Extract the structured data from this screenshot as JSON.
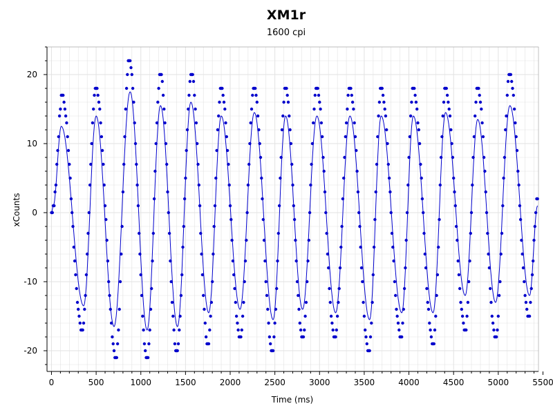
{
  "chart_data": {
    "type": "scatter",
    "title": "XM1r",
    "subtitle": "1600 cpi",
    "xlabel": "Time (ms)",
    "ylabel": "xCounts",
    "xlim": [
      -50,
      5450
    ],
    "ylim": [
      -23,
      24
    ],
    "x_ticks": [
      0,
      500,
      1000,
      1500,
      2000,
      2500,
      3000,
      3500,
      4000,
      4500,
      5000,
      5500
    ],
    "y_ticks": [
      -20,
      -10,
      0,
      10,
      20
    ],
    "x_tick_labels": [
      "0",
      "500",
      "1000",
      "1500",
      "2000",
      "2500",
      "3000",
      "3500",
      "4000",
      "4500",
      "5000",
      "5500"
    ],
    "y_tick_labels": [
      "-20",
      "-10",
      "0",
      "10",
      "20"
    ],
    "grid": true,
    "legend": "none",
    "colors": {
      "points": "#0000cc",
      "line": "#0000cc",
      "grid": "#e2e2e2",
      "axis": "#000000"
    },
    "series": [
      {
        "kind": "smoothed-line",
        "peaks": [
          [
            0,
            0
          ],
          [
            20,
            1
          ],
          [
            110,
            12.5
          ],
          [
            360,
            -13.5
          ],
          [
            500,
            14
          ],
          [
            700,
            -16.5
          ],
          [
            880,
            17.5
          ],
          [
            1070,
            -17
          ],
          [
            1220,
            15.5
          ],
          [
            1410,
            -16.5
          ],
          [
            1560,
            16
          ],
          [
            1760,
            -14.5
          ],
          [
            1900,
            14
          ],
          [
            2110,
            -14
          ],
          [
            2270,
            14.5
          ],
          [
            2480,
            -15.5
          ],
          [
            2620,
            14
          ],
          [
            2810,
            -14
          ],
          [
            2970,
            14
          ],
          [
            3180,
            -14.5
          ],
          [
            3340,
            14
          ],
          [
            3560,
            -15.5
          ],
          [
            3690,
            14
          ],
          [
            3920,
            -14.5
          ],
          [
            4050,
            14
          ],
          [
            4270,
            -14.5
          ],
          [
            4410,
            14.5
          ],
          [
            4630,
            -12
          ],
          [
            4770,
            13.5
          ],
          [
            4970,
            -13
          ],
          [
            5130,
            15.5
          ],
          [
            5350,
            -12
          ],
          [
            5440,
            1
          ]
        ]
      },
      {
        "kind": "points",
        "peaks": [
          [
            0,
            0
          ],
          [
            20,
            1
          ],
          [
            120,
            17
          ],
          [
            340,
            -17
          ],
          [
            500,
            18
          ],
          [
            720,
            -21
          ],
          [
            870,
            22
          ],
          [
            1070,
            -21
          ],
          [
            1220,
            20
          ],
          [
            1400,
            -20
          ],
          [
            1570,
            20
          ],
          [
            1750,
            -19
          ],
          [
            1900,
            18
          ],
          [
            2110,
            -18
          ],
          [
            2270,
            18
          ],
          [
            2470,
            -20
          ],
          [
            2620,
            18
          ],
          [
            2810,
            -18
          ],
          [
            2970,
            18
          ],
          [
            3170,
            -18
          ],
          [
            3340,
            18
          ],
          [
            3550,
            -20
          ],
          [
            3690,
            18
          ],
          [
            3910,
            -18
          ],
          [
            4050,
            18
          ],
          [
            4270,
            -19
          ],
          [
            4410,
            18
          ],
          [
            4630,
            -17
          ],
          [
            4770,
            18
          ],
          [
            4970,
            -18
          ],
          [
            5130,
            20
          ],
          [
            5340,
            -15
          ],
          [
            5440,
            2
          ]
        ],
        "step_ms": 10
      }
    ]
  }
}
